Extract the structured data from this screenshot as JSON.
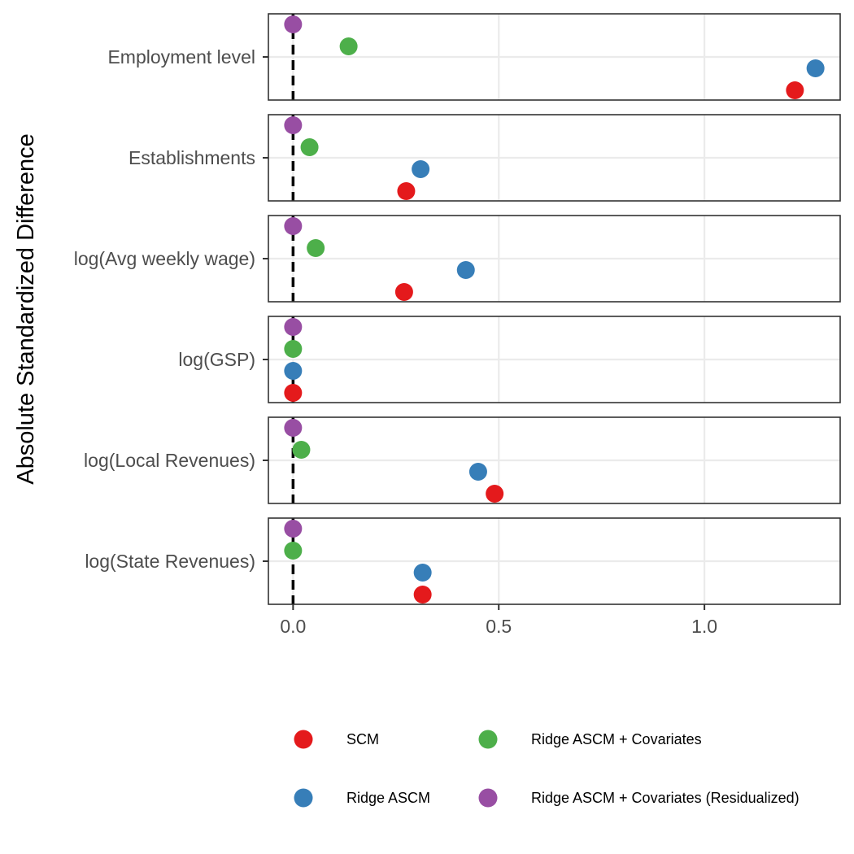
{
  "chart_data": {
    "type": "scatter",
    "title": "",
    "xlabel": "",
    "ylabel": "Absolute Standardized Difference",
    "xlim": [
      -0.06,
      1.33
    ],
    "x_ticks": [
      {
        "value": 0.0,
        "label": "0.0"
      },
      {
        "value": 0.5,
        "label": "0.5"
      },
      {
        "value": 1.0,
        "label": "1.0"
      }
    ],
    "reference_line": {
      "x": 0,
      "style": "dashed",
      "color": "#000000"
    },
    "grid": true,
    "legend_position": "bottom",
    "categories": [
      "Employment level",
      "Establishments",
      "log(Avg weekly wage)",
      "log(GSP)",
      "log(Local Revenues)",
      "log(State Revenues)"
    ],
    "series": [
      {
        "name": "SCM",
        "color": "#E41A1C",
        "values": [
          1.22,
          0.275,
          0.27,
          0.0,
          0.49,
          0.315
        ]
      },
      {
        "name": "Ridge ASCM",
        "color": "#377EB8",
        "values": [
          1.27,
          0.31,
          0.42,
          0.0,
          0.45,
          0.315
        ]
      },
      {
        "name": "Ridge ASCM + Covariates",
        "color": "#4DAF4A",
        "values": [
          0.135,
          0.04,
          0.055,
          0.0,
          0.02,
          0.0
        ]
      },
      {
        "name": "Ridge ASCM + Covariates (Residualized)",
        "color": "#984EA3",
        "values": [
          0.0,
          0.0,
          0.0,
          0.0,
          0.0,
          0.0
        ]
      }
    ]
  }
}
